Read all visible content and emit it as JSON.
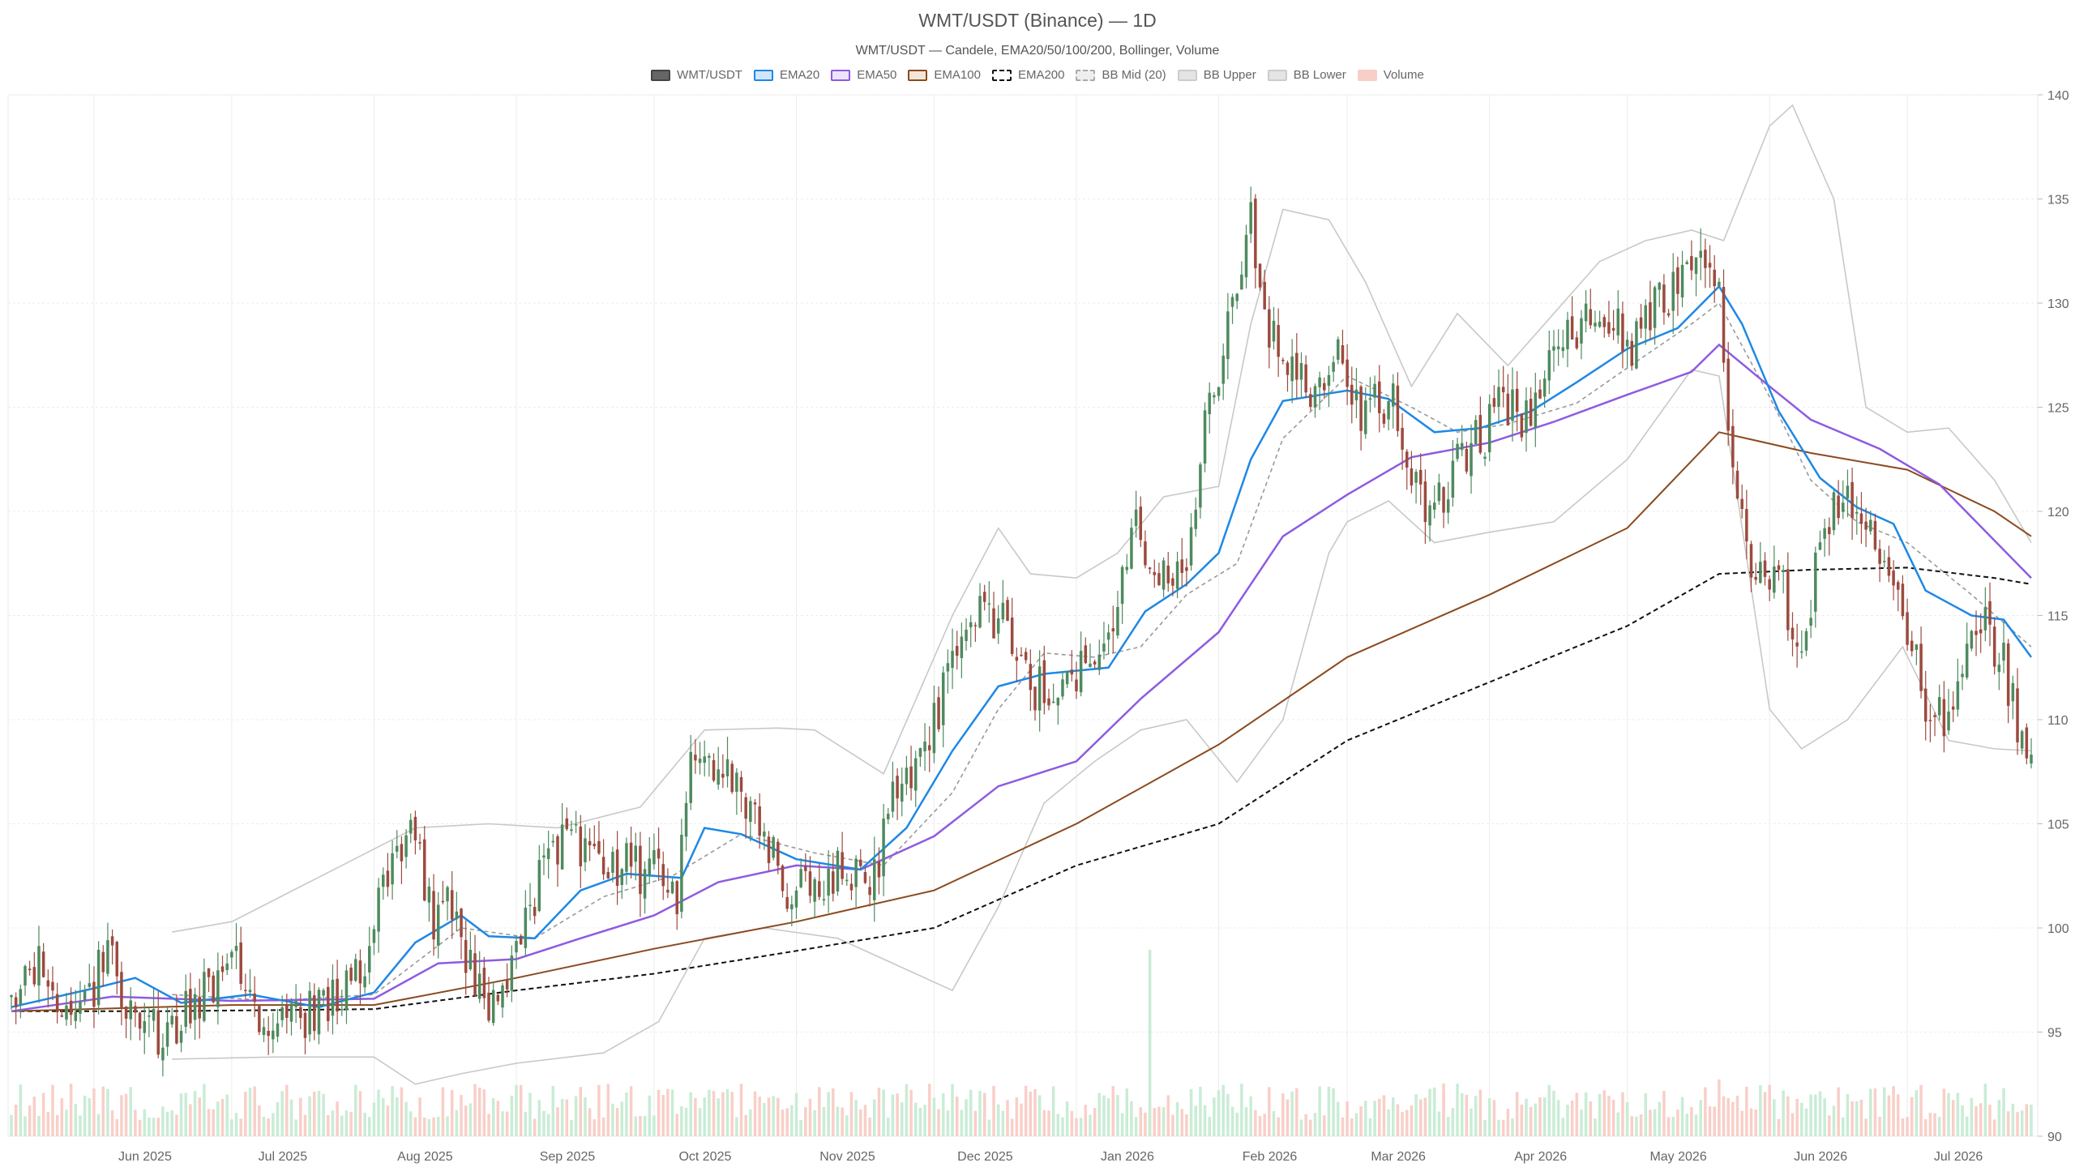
{
  "chart_data": {
    "type": "candlestick",
    "title": "WMT/USDT (Binance) — 1D",
    "subtitle": "WMT/USDT — Candele, EMA20/50/100/200, Bollinger, Volume",
    "legend": [
      {
        "label": "WMT/USDT",
        "fill": "#666666",
        "stroke": "#444444",
        "dash": false
      },
      {
        "label": "EMA20",
        "fill": "#cfe6fb",
        "stroke": "#1e88e5",
        "dash": false
      },
      {
        "label": "EMA50",
        "fill": "#ede4fb",
        "stroke": "#8e5be0",
        "dash": false
      },
      {
        "label": "EMA100",
        "fill": "#f3e6d8",
        "stroke": "#8a4a1f",
        "dash": false
      },
      {
        "label": "EMA200",
        "fill": "#ffffff",
        "stroke": "#111111",
        "dash": true
      },
      {
        "label": "BB Mid (20)",
        "fill": "#eeeeee",
        "stroke": "#aaaaaa",
        "dash": true
      },
      {
        "label": "BB Upper",
        "fill": "#e4e4e4",
        "stroke": "#cccccc",
        "dash": false
      },
      {
        "label": "BB Lower",
        "fill": "#e4e4e4",
        "stroke": "#cccccc",
        "dash": false
      },
      {
        "label": "Volume",
        "fill": "#f8cfc8",
        "stroke": "#f8cfc8",
        "dash": false
      }
    ],
    "x_axis": {
      "type": "date",
      "start": "2025-05-14",
      "end": "2026-07-28",
      "tick_labels": [
        {
          "date": "2025-06-01",
          "label": "Jun 2025"
        },
        {
          "date": "2025-07-01",
          "label": "Jul 2025"
        },
        {
          "date": "2025-08-01",
          "label": "Aug 2025"
        },
        {
          "date": "2025-09-01",
          "label": "Sep 2025"
        },
        {
          "date": "2025-10-01",
          "label": "Oct 2025"
        },
        {
          "date": "2025-11-01",
          "label": "Nov 2025"
        },
        {
          "date": "2025-12-01",
          "label": "Dec 2025"
        },
        {
          "date": "2026-01-01",
          "label": "Jan 2026"
        },
        {
          "date": "2026-02-01",
          "label": "Feb 2026"
        },
        {
          "date": "2026-03-01",
          "label": "Mar 2026"
        },
        {
          "date": "2026-04-01",
          "label": "Apr 2026"
        },
        {
          "date": "2026-05-01",
          "label": "May 2026"
        },
        {
          "date": "2026-06-01",
          "label": "Jun 2026"
        },
        {
          "date": "2026-07-01",
          "label": "Jul 2026"
        }
      ]
    },
    "y_axis": {
      "min": 90,
      "max": 140,
      "position": "right",
      "ticks": [
        "90",
        "95",
        "100",
        "105",
        "110",
        "115",
        "120",
        "125",
        "130",
        "135",
        "140"
      ]
    },
    "grid": true,
    "colors": {
      "up": "#4e8a5e",
      "down": "#9c4a3e",
      "vol_up": "#c9ecd5",
      "vol_down": "#f8cfc8",
      "ema20": "#1e88e5",
      "ema50": "#8e5be0",
      "ema100": "#8a4a1f",
      "ema200": "#111111",
      "bb_mid": "#999999",
      "bb_band": "#c8c8c8"
    },
    "price_path": [
      [
        "2025-05-14",
        96.5
      ],
      [
        "2025-05-20",
        98.0
      ],
      [
        "2025-05-24",
        96.2
      ],
      [
        "2025-06-01",
        97.2
      ],
      [
        "2025-06-04",
        98.8
      ],
      [
        "2025-06-07",
        97.0
      ],
      [
        "2025-06-12",
        95.6
      ],
      [
        "2025-06-16",
        94.2
      ],
      [
        "2025-06-22",
        96.0
      ],
      [
        "2025-06-28",
        97.6
      ],
      [
        "2025-07-03",
        98.6
      ],
      [
        "2025-07-08",
        95.0
      ],
      [
        "2025-07-14",
        95.8
      ],
      [
        "2025-07-22",
        96.2
      ],
      [
        "2025-07-30",
        98.2
      ],
      [
        "2025-08-04",
        103.2
      ],
      [
        "2025-08-10",
        104.5
      ],
      [
        "2025-08-14",
        100.5
      ],
      [
        "2025-08-18",
        101.2
      ],
      [
        "2025-08-21",
        98.6
      ],
      [
        "2025-08-26",
        96.0
      ],
      [
        "2025-09-01",
        98.5
      ],
      [
        "2025-09-06",
        102.2
      ],
      [
        "2025-09-10",
        104.0
      ],
      [
        "2025-09-16",
        103.6
      ],
      [
        "2025-09-24",
        102.8
      ],
      [
        "2025-10-01",
        103.0
      ],
      [
        "2025-10-06",
        101.6
      ],
      [
        "2025-10-09",
        108.8
      ],
      [
        "2025-10-14",
        107.4
      ],
      [
        "2025-10-19",
        106.5
      ],
      [
        "2025-10-25",
        104.0
      ],
      [
        "2025-10-31",
        101.5
      ],
      [
        "2025-11-06",
        102.2
      ],
      [
        "2025-11-12",
        102.7
      ],
      [
        "2025-11-18",
        102.4
      ],
      [
        "2025-11-22",
        106.8
      ],
      [
        "2025-11-28",
        108.5
      ],
      [
        "2025-12-04",
        112.0
      ],
      [
        "2025-12-09",
        114.5
      ],
      [
        "2025-12-14",
        115.2
      ],
      [
        "2025-12-18",
        113.5
      ],
      [
        "2025-12-22",
        111.2
      ],
      [
        "2025-12-28",
        111.8
      ],
      [
        "2026-01-03",
        112.3
      ],
      [
        "2026-01-08",
        113.0
      ],
      [
        "2026-01-14",
        119.5
      ],
      [
        "2026-01-20",
        117.0
      ],
      [
        "2026-01-25",
        118.2
      ],
      [
        "2026-01-30",
        125.5
      ],
      [
        "2026-02-04",
        129.5
      ],
      [
        "2026-02-08",
        133.8
      ],
      [
        "2026-02-12",
        129.0
      ],
      [
        "2026-02-16",
        126.3
      ],
      [
        "2026-02-22",
        125.8
      ],
      [
        "2026-02-28",
        127.2
      ],
      [
        "2026-03-04",
        124.0
      ],
      [
        "2026-03-10",
        125.8
      ],
      [
        "2026-03-15",
        121.5
      ],
      [
        "2026-03-20",
        119.8
      ],
      [
        "2026-03-25",
        122.5
      ],
      [
        "2026-03-30",
        123.4
      ],
      [
        "2026-04-04",
        125.5
      ],
      [
        "2026-04-08",
        124.5
      ],
      [
        "2026-04-14",
        127.2
      ],
      [
        "2026-04-20",
        128.5
      ],
      [
        "2026-04-26",
        129.5
      ],
      [
        "2026-05-02",
        128.0
      ],
      [
        "2026-05-07",
        130.0
      ],
      [
        "2026-05-12",
        130.5
      ],
      [
        "2026-05-17",
        133.0
      ],
      [
        "2026-05-21",
        130.0
      ],
      [
        "2026-05-24",
        122.0
      ],
      [
        "2026-05-28",
        117.5
      ],
      [
        "2026-06-03",
        116.5
      ],
      [
        "2026-06-08",
        113.5
      ],
      [
        "2026-06-12",
        118.8
      ],
      [
        "2026-06-17",
        120.2
      ],
      [
        "2026-06-22",
        119.0
      ],
      [
        "2026-06-28",
        116.2
      ],
      [
        "2026-07-03",
        114.0
      ],
      [
        "2026-07-06",
        109.0
      ],
      [
        "2026-07-10",
        111.0
      ],
      [
        "2026-07-14",
        112.5
      ],
      [
        "2026-07-18",
        114.5
      ],
      [
        "2026-07-22",
        112.5
      ],
      [
        "2026-07-25",
        109.5
      ],
      [
        "2026-07-28",
        108.2
      ]
    ],
    "ema20_path": [
      [
        "2025-05-14",
        96.2
      ],
      [
        "2025-06-01",
        97.1
      ],
      [
        "2025-06-10",
        97.6
      ],
      [
        "2025-06-20",
        96.4
      ],
      [
        "2025-07-05",
        96.8
      ],
      [
        "2025-07-20",
        96.2
      ],
      [
        "2025-08-01",
        96.9
      ],
      [
        "2025-08-10",
        99.3
      ],
      [
        "2025-08-20",
        100.6
      ],
      [
        "2025-08-26",
        99.6
      ],
      [
        "2025-09-05",
        99.5
      ],
      [
        "2025-09-15",
        101.8
      ],
      [
        "2025-09-25",
        102.6
      ],
      [
        "2025-10-07",
        102.4
      ],
      [
        "2025-10-12",
        104.8
      ],
      [
        "2025-10-20",
        104.5
      ],
      [
        "2025-11-01",
        103.3
      ],
      [
        "2025-11-15",
        102.8
      ],
      [
        "2025-11-25",
        104.8
      ],
      [
        "2025-12-05",
        108.5
      ],
      [
        "2025-12-15",
        111.6
      ],
      [
        "2025-12-25",
        112.2
      ],
      [
        "2026-01-08",
        112.5
      ],
      [
        "2026-01-16",
        115.2
      ],
      [
        "2026-01-25",
        116.5
      ],
      [
        "2026-02-01",
        118.0
      ],
      [
        "2026-02-08",
        122.5
      ],
      [
        "2026-02-15",
        125.3
      ],
      [
        "2026-03-01",
        125.8
      ],
      [
        "2026-03-10",
        125.4
      ],
      [
        "2026-03-20",
        123.8
      ],
      [
        "2026-03-30",
        124.0
      ],
      [
        "2026-04-10",
        124.8
      ],
      [
        "2026-04-20",
        126.2
      ],
      [
        "2026-05-01",
        127.8
      ],
      [
        "2026-05-12",
        128.8
      ],
      [
        "2026-05-21",
        130.8
      ],
      [
        "2026-05-26",
        129.0
      ],
      [
        "2026-06-03",
        124.8
      ],
      [
        "2026-06-12",
        121.6
      ],
      [
        "2026-06-20",
        120.2
      ],
      [
        "2026-06-28",
        119.4
      ],
      [
        "2026-07-05",
        116.2
      ],
      [
        "2026-07-15",
        115.0
      ],
      [
        "2026-07-22",
        114.8
      ],
      [
        "2026-07-28",
        113.0
      ]
    ],
    "ema50_path": [
      [
        "2025-05-14",
        96.0
      ],
      [
        "2025-06-05",
        96.7
      ],
      [
        "2025-07-01",
        96.5
      ],
      [
        "2025-08-01",
        96.6
      ],
      [
        "2025-08-15",
        98.3
      ],
      [
        "2025-09-01",
        98.5
      ],
      [
        "2025-09-15",
        99.5
      ],
      [
        "2025-10-01",
        100.6
      ],
      [
        "2025-10-15",
        102.2
      ],
      [
        "2025-11-01",
        103.0
      ],
      [
        "2025-11-15",
        102.8
      ],
      [
        "2025-12-01",
        104.4
      ],
      [
        "2025-12-15",
        106.8
      ],
      [
        "2026-01-01",
        108.0
      ],
      [
        "2026-01-15",
        111.0
      ],
      [
        "2026-02-01",
        114.2
      ],
      [
        "2026-02-15",
        118.8
      ],
      [
        "2026-03-01",
        120.8
      ],
      [
        "2026-03-15",
        122.6
      ],
      [
        "2026-04-01",
        123.3
      ],
      [
        "2026-04-15",
        124.3
      ],
      [
        "2026-05-01",
        125.6
      ],
      [
        "2026-05-15",
        126.7
      ],
      [
        "2026-05-21",
        128.0
      ],
      [
        "2026-06-01",
        126.0
      ],
      [
        "2026-06-10",
        124.4
      ],
      [
        "2026-06-25",
        123.0
      ],
      [
        "2026-07-08",
        121.3
      ],
      [
        "2026-07-20",
        118.6
      ],
      [
        "2026-07-28",
        116.8
      ]
    ],
    "ema100_path": [
      [
        "2025-05-14",
        96.0
      ],
      [
        "2025-07-01",
        96.3
      ],
      [
        "2025-08-01",
        96.3
      ],
      [
        "2025-09-01",
        97.6
      ],
      [
        "2025-10-01",
        99.0
      ],
      [
        "2025-11-01",
        100.3
      ],
      [
        "2025-12-01",
        101.8
      ],
      [
        "2026-01-01",
        105.0
      ],
      [
        "2026-02-01",
        108.8
      ],
      [
        "2026-03-01",
        113.0
      ],
      [
        "2026-04-01",
        116.0
      ],
      [
        "2026-05-01",
        119.2
      ],
      [
        "2026-05-21",
        123.8
      ],
      [
        "2026-06-10",
        122.8
      ],
      [
        "2026-07-01",
        122.0
      ],
      [
        "2026-07-20",
        120.0
      ],
      [
        "2026-07-28",
        118.8
      ]
    ],
    "ema200_path": [
      [
        "2025-05-14",
        96.0
      ],
      [
        "2025-06-15",
        96.0
      ],
      [
        "2025-08-01",
        96.1
      ],
      [
        "2025-09-01",
        97.0
      ],
      [
        "2025-10-01",
        97.8
      ],
      [
        "2025-11-01",
        98.9
      ],
      [
        "2025-12-01",
        100.0
      ],
      [
        "2026-01-01",
        103.0
      ],
      [
        "2026-02-01",
        105.0
      ],
      [
        "2026-03-01",
        109.0
      ],
      [
        "2026-04-01",
        111.8
      ],
      [
        "2026-05-01",
        114.5
      ],
      [
        "2026-05-21",
        117.0
      ],
      [
        "2026-06-10",
        117.2
      ],
      [
        "2026-07-01",
        117.3
      ],
      [
        "2026-07-20",
        116.8
      ],
      [
        "2026-07-28",
        116.5
      ]
    ],
    "bb_upper_path": [
      [
        "2025-06-18",
        99.8
      ],
      [
        "2025-07-01",
        100.3
      ],
      [
        "2025-08-10",
        104.8
      ],
      [
        "2025-08-26",
        105.0
      ],
      [
        "2025-09-10",
        104.8
      ],
      [
        "2025-09-28",
        105.8
      ],
      [
        "2025-10-12",
        109.5
      ],
      [
        "2025-10-28",
        109.6
      ],
      [
        "2025-11-05",
        109.5
      ],
      [
        "2025-11-20",
        107.4
      ],
      [
        "2025-12-05",
        115.0
      ],
      [
        "2025-12-15",
        119.2
      ],
      [
        "2025-12-22",
        117.0
      ],
      [
        "2026-01-01",
        116.8
      ],
      [
        "2026-01-10",
        118.0
      ],
      [
        "2026-01-20",
        120.7
      ],
      [
        "2026-02-01",
        121.2
      ],
      [
        "2026-02-08",
        129.0
      ],
      [
        "2026-02-15",
        134.5
      ],
      [
        "2026-02-25",
        134.0
      ],
      [
        "2026-03-05",
        131.0
      ],
      [
        "2026-03-15",
        126.0
      ],
      [
        "2026-03-25",
        129.5
      ],
      [
        "2026-04-05",
        127.0
      ],
      [
        "2026-04-15",
        129.5
      ],
      [
        "2026-04-25",
        132.0
      ],
      [
        "2026-05-05",
        133.0
      ],
      [
        "2026-05-15",
        133.5
      ],
      [
        "2026-05-22",
        133.0
      ],
      [
        "2026-06-01",
        138.5
      ],
      [
        "2026-06-06",
        139.5
      ],
      [
        "2026-06-15",
        135.0
      ],
      [
        "2026-06-22",
        125.0
      ],
      [
        "2026-07-01",
        123.8
      ],
      [
        "2026-07-10",
        124.0
      ],
      [
        "2026-07-20",
        121.5
      ],
      [
        "2026-07-28",
        118.5
      ]
    ],
    "bb_lower_path": [
      [
        "2025-06-18",
        93.7
      ],
      [
        "2025-07-10",
        93.8
      ],
      [
        "2025-08-01",
        93.8
      ],
      [
        "2025-08-10",
        92.5
      ],
      [
        "2025-08-20",
        93.0
      ],
      [
        "2025-09-01",
        93.5
      ],
      [
        "2025-09-20",
        94.0
      ],
      [
        "2025-10-02",
        95.5
      ],
      [
        "2025-10-12",
        99.5
      ],
      [
        "2025-10-25",
        100.0
      ],
      [
        "2025-11-10",
        99.5
      ],
      [
        "2025-11-25",
        98.0
      ],
      [
        "2025-12-05",
        97.0
      ],
      [
        "2025-12-15",
        101.0
      ],
      [
        "2025-12-25",
        106.0
      ],
      [
        "2026-01-05",
        108.0
      ],
      [
        "2026-01-15",
        109.5
      ],
      [
        "2026-01-25",
        110.0
      ],
      [
        "2026-02-05",
        107.0
      ],
      [
        "2026-02-15",
        110.0
      ],
      [
        "2026-02-25",
        118.0
      ],
      [
        "2026-03-01",
        119.5
      ],
      [
        "2026-03-10",
        120.5
      ],
      [
        "2026-03-20",
        118.5
      ],
      [
        "2026-04-01",
        119.0
      ],
      [
        "2026-04-15",
        119.5
      ],
      [
        "2026-05-01",
        122.5
      ],
      [
        "2026-05-15",
        126.8
      ],
      [
        "2026-05-21",
        126.5
      ],
      [
        "2026-06-01",
        110.5
      ],
      [
        "2026-06-08",
        108.6
      ],
      [
        "2026-06-18",
        110.0
      ],
      [
        "2026-06-30",
        113.5
      ],
      [
        "2026-07-10",
        109.0
      ],
      [
        "2026-07-20",
        108.6
      ],
      [
        "2026-07-28",
        108.5
      ]
    ],
    "bb_mid_path": [
      [
        "2025-06-18",
        96.8
      ],
      [
        "2025-07-10",
        96.5
      ],
      [
        "2025-08-01",
        96.8
      ],
      [
        "2025-08-20",
        100.0
      ],
      [
        "2025-09-05",
        99.5
      ],
      [
        "2025-09-20",
        101.5
      ],
      [
        "2025-10-05",
        102.5
      ],
      [
        "2025-10-20",
        104.5
      ],
      [
        "2025-11-05",
        103.6
      ],
      [
        "2025-11-20",
        103.0
      ],
      [
        "2025-12-05",
        106.5
      ],
      [
        "2025-12-15",
        110.5
      ],
      [
        "2025-12-25",
        113.2
      ],
      [
        "2026-01-05",
        113.0
      ],
      [
        "2026-01-15",
        113.5
      ],
      [
        "2026-01-25",
        116.0
      ],
      [
        "2026-02-05",
        117.5
      ],
      [
        "2026-02-15",
        123.5
      ],
      [
        "2026-03-01",
        126.5
      ],
      [
        "2026-03-15",
        125.0
      ],
      [
        "2026-03-25",
        123.8
      ],
      [
        "2026-04-05",
        124.2
      ],
      [
        "2026-04-20",
        125.2
      ],
      [
        "2026-05-05",
        127.5
      ],
      [
        "2026-05-15",
        129.0
      ],
      [
        "2026-05-21",
        130.0
      ],
      [
        "2026-06-01",
        125.5
      ],
      [
        "2026-06-10",
        121.5
      ],
      [
        "2026-06-20",
        119.5
      ],
      [
        "2026-07-01",
        118.5
      ],
      [
        "2026-07-15",
        116.0
      ],
      [
        "2026-07-28",
        113.5
      ]
    ],
    "volume_spikes": [
      {
        "date": "2026-01-17",
        "height": 46.0,
        "up": true
      },
      {
        "date": "2026-05-21",
        "height": 14.0,
        "up": false
      },
      {
        "date": "2026-03-22",
        "height": 13.0,
        "up": false
      },
      {
        "date": "2025-08-24",
        "height": 12.0,
        "up": false
      },
      {
        "date": "2025-11-20",
        "height": 11.5,
        "up": true
      }
    ]
  }
}
